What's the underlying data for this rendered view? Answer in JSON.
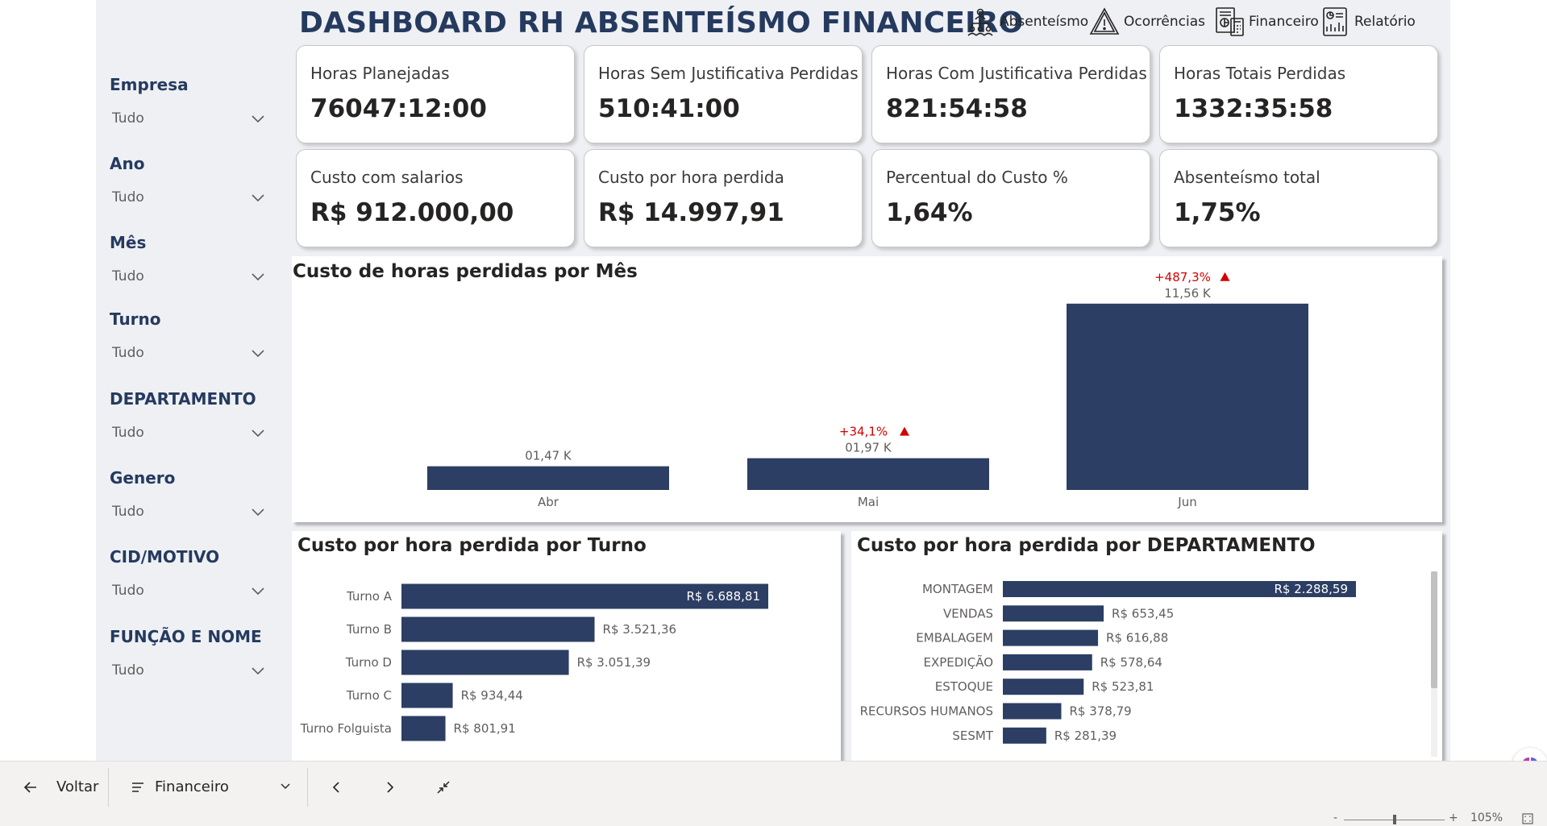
{
  "title": "DASHBOARD RH ABSENTEÍSMO FINANCEIRO",
  "nav": [
    {
      "label": "Absenteísmo",
      "icon": "team-hierarchy-icon"
    },
    {
      "label": "Ocorrências",
      "icon": "warning-icon"
    },
    {
      "label": "Financeiro",
      "icon": "finance-calculator-icon"
    },
    {
      "label": "Relatório",
      "icon": "report-icon"
    }
  ],
  "filters": [
    {
      "label": "Empresa",
      "value": "Tudo"
    },
    {
      "label": "Ano",
      "value": "Tudo"
    },
    {
      "label": "Mês",
      "value": "Tudo"
    },
    {
      "label": "Turno",
      "value": "Tudo"
    },
    {
      "label": "DEPARTAMENTO",
      "value": "Tudo"
    },
    {
      "label": "Genero",
      "value": "Tudo"
    },
    {
      "label": "CID/MOTIVO",
      "value": "Tudo"
    },
    {
      "label": "FUNÇÃO E NOME",
      "value": "Tudo"
    }
  ],
  "kpis": [
    {
      "label": "Horas Planejadas",
      "value": "76047:12:00"
    },
    {
      "label": "Horas Sem Justificativa Perdidas",
      "value": "510:41:00"
    },
    {
      "label": "Horas Com Justificativa Perdidas",
      "value": "821:54:58"
    },
    {
      "label": "Horas Totais Perdidas",
      "value": "1332:35:58"
    },
    {
      "label": "Custo com salarios",
      "value": "R$ 912.000,00"
    },
    {
      "label": "Custo por hora perdida",
      "value": "R$ 14.997,91"
    },
    {
      "label": "Percentual do Custo %",
      "value": "1,64%"
    },
    {
      "label": "Absenteísmo total",
      "value": "1,75%"
    }
  ],
  "chart_data": [
    {
      "type": "bar",
      "title": "Custo de horas perdidas por Mês",
      "categories": [
        "Abr",
        "Mai",
        "Jun"
      ],
      "values": [
        1470,
        1970,
        11560
      ],
      "data_labels": [
        "01,47 K",
        "01,97 K",
        "11,56 K"
      ],
      "change_labels": [
        "",
        "+34,1%",
        "+487,3%"
      ],
      "ylim": [
        0,
        12000
      ],
      "color": "#2c3e63",
      "change_color": "#d40000"
    },
    {
      "type": "bar",
      "orientation": "horizontal",
      "title": "Custo por hora perdida por Turno",
      "categories": [
        "Turno A",
        "Turno B",
        "Turno D",
        "Turno C",
        "Turno Folguista"
      ],
      "values": [
        6688.81,
        3521.36,
        3051.39,
        934.44,
        801.91
      ],
      "data_labels": [
        "R$ 6.688,81",
        "R$ 3.521,36",
        "R$ 3.051,39",
        "R$ 934,44",
        "R$ 801,91"
      ],
      "color": "#2c3e63"
    },
    {
      "type": "bar",
      "orientation": "horizontal",
      "title": "Custo por hora perdida por DEPARTAMENTO",
      "categories": [
        "MONTAGEM",
        "VENDAS",
        "EMBALAGEM",
        "EXPEDIÇÃO",
        "ESTOQUE",
        "RECURSOS HUMANOS",
        "SESMT"
      ],
      "values": [
        2288.59,
        653.45,
        616.88,
        578.64,
        523.81,
        378.79,
        281.39
      ],
      "data_labels": [
        "R$ 2.288,59",
        "R$ 653,45",
        "R$ 616,88",
        "R$ 578,64",
        "R$ 523,81",
        "R$ 378,79",
        "R$ 281,39"
      ],
      "color": "#2c3e63"
    }
  ],
  "bottombar": {
    "back_label": "Voltar",
    "page_label": "Financeiro"
  },
  "statusbar": {
    "zoom_minus": "-",
    "zoom_plus": "+",
    "zoom_level": "105%"
  }
}
